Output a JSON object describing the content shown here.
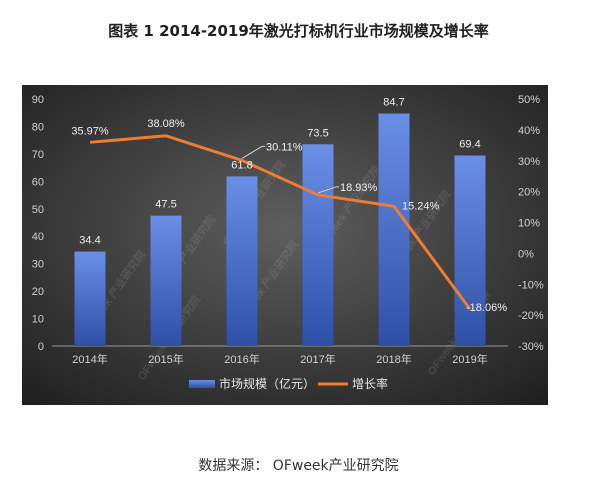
{
  "title": "图表 1  2014-2019年激光打标机行业市场规模及增长率",
  "source": "数据来源： OFweek产业研究院",
  "watermark": "OFweek 产业研究院",
  "colors": {
    "bg_light": "#595959",
    "bg_dark": "#202020",
    "bar_top": "#6a8fe6",
    "bar_bottom": "#2e4fa6",
    "line": "#ed7d31",
    "axis_text": "#d0d0d0",
    "label_text": "#f0f0f0",
    "legend_text": "#e8e8e8",
    "grid": "#6e6e6e"
  },
  "chart_data": {
    "type": "bar",
    "categories": [
      "2014年",
      "2015年",
      "2016年",
      "2017年",
      "2018年",
      "2019年"
    ],
    "series": [
      {
        "name": "市场规模（亿元）",
        "type": "bar",
        "axis": "left",
        "values": [
          34.4,
          47.5,
          61.8,
          73.5,
          84.7,
          69.4
        ],
        "labels": [
          "34.4",
          "47.5",
          "61.8",
          "73.5",
          "84.7",
          "69.4"
        ]
      },
      {
        "name": "增长率",
        "type": "line",
        "axis": "right",
        "values": [
          35.97,
          38.08,
          30.11,
          18.93,
          15.24,
          -18.06
        ],
        "labels": [
          "35.97%",
          "38.08%",
          "30.11%",
          "18.93%",
          "15.24%",
          "-18.06%"
        ]
      }
    ],
    "ylim_left": [
      0,
      90
    ],
    "yticks_left": [
      "0",
      "10",
      "20",
      "30",
      "40",
      "50",
      "60",
      "70",
      "80",
      "90"
    ],
    "ylim_right": [
      -30,
      50
    ],
    "yticks_right": [
      "-30%",
      "-20%",
      "-10%",
      "0%",
      "10%",
      "20%",
      "30%",
      "40%",
      "50%"
    ],
    "legend": "bottom",
    "grid": false
  }
}
